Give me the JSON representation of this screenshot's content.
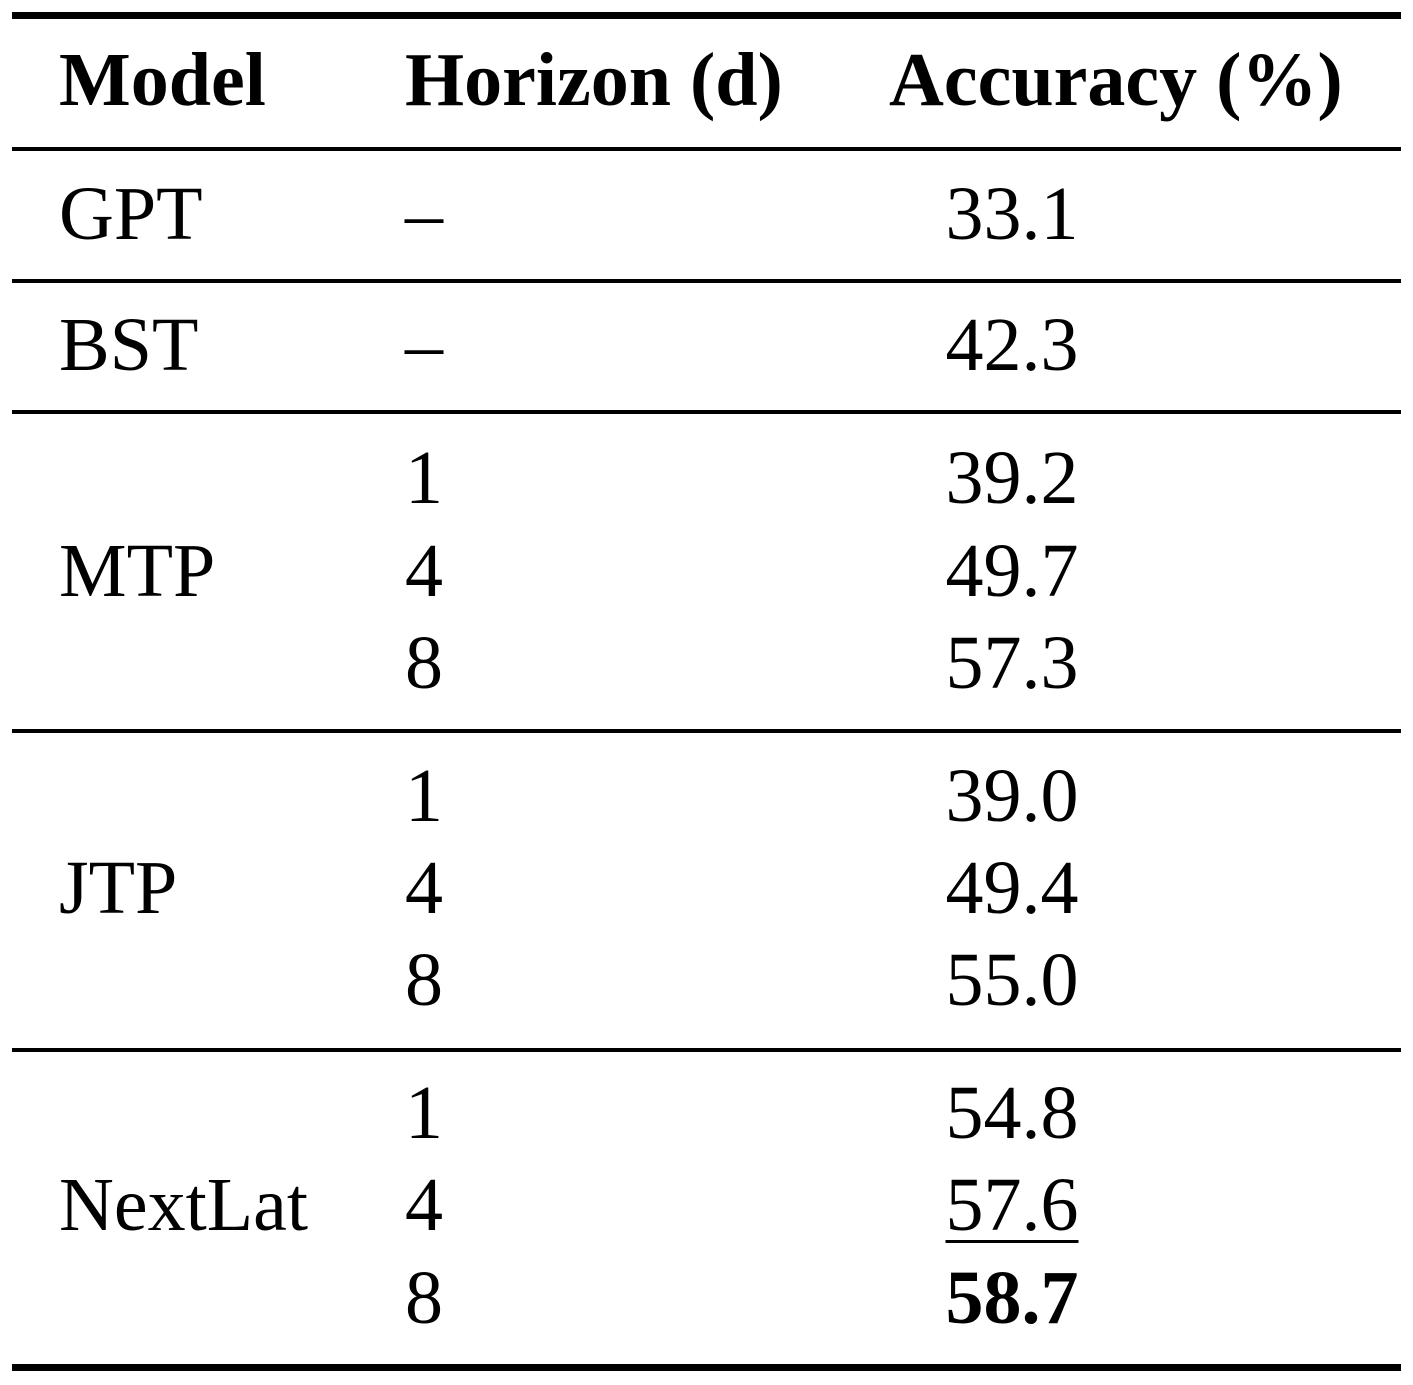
{
  "table": {
    "headers": {
      "model": "Model",
      "horizon": "Horizon (d)",
      "accuracy": "Accuracy (%)"
    },
    "groups": [
      {
        "model": "GPT",
        "rows": [
          {
            "horizon": "–",
            "accuracy": "33.1",
            "style": "normal"
          }
        ]
      },
      {
        "model": "BST",
        "rows": [
          {
            "horizon": "–",
            "accuracy": "42.3",
            "style": "normal"
          }
        ]
      },
      {
        "model": "MTP",
        "rows": [
          {
            "horizon": "1",
            "accuracy": "39.2",
            "style": "normal"
          },
          {
            "horizon": "4",
            "accuracy": "49.7",
            "style": "normal"
          },
          {
            "horizon": "8",
            "accuracy": "57.3",
            "style": "normal"
          }
        ]
      },
      {
        "model": "JTP",
        "rows": [
          {
            "horizon": "1",
            "accuracy": "39.0",
            "style": "normal"
          },
          {
            "horizon": "4",
            "accuracy": "49.4",
            "style": "normal"
          },
          {
            "horizon": "8",
            "accuracy": "55.0",
            "style": "normal"
          }
        ]
      },
      {
        "model": "NextLat",
        "rows": [
          {
            "horizon": "1",
            "accuracy": "54.8",
            "style": "normal"
          },
          {
            "horizon": "4",
            "accuracy": "57.6",
            "style": "underline"
          },
          {
            "horizon": "8",
            "accuracy": "58.7",
            "style": "bold"
          }
        ]
      }
    ]
  }
}
